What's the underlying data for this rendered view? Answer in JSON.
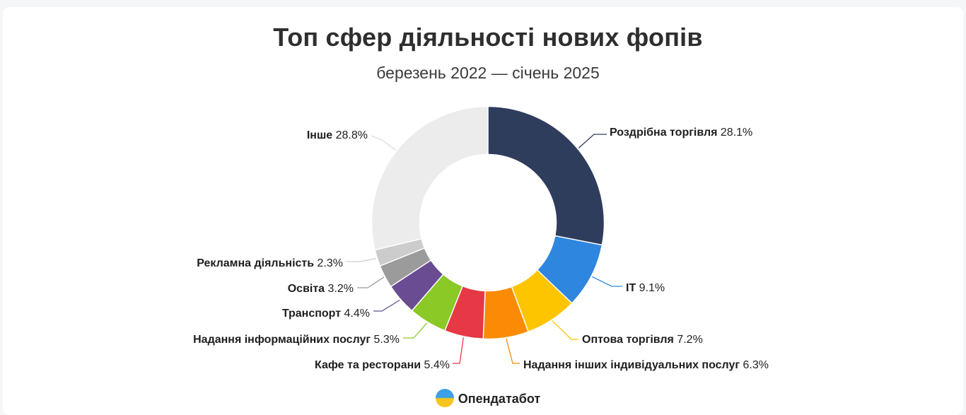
{
  "chart_data": {
    "type": "pie",
    "title": "Топ сфер діяльності нових фопів",
    "subtitle": "березень 2022 — січень 2025",
    "unit": "%",
    "slices": [
      {
        "name": "Роздрібна торгівля",
        "value": 28.1,
        "label": "28.1%",
        "color": "#2f3d5c"
      },
      {
        "name": "IT",
        "value": 9.1,
        "label": "9.1%",
        "color": "#2f86de"
      },
      {
        "name": "Оптова торгівля",
        "value": 7.2,
        "label": "7.2%",
        "color": "#fdc500"
      },
      {
        "name": "Надання інших індивідуальних послуг",
        "value": 6.3,
        "label": "6.3%",
        "color": "#fb8b05"
      },
      {
        "name": "Кафе та ресторани",
        "value": 5.4,
        "label": "5.4%",
        "color": "#e73845"
      },
      {
        "name": "Надання інформаційних послуг",
        "value": 5.3,
        "label": "5.3%",
        "color": "#8ac926"
      },
      {
        "name": "Транспорт",
        "value": 4.4,
        "label": "4.4%",
        "color": "#6a4c93"
      },
      {
        "name": "Освіта",
        "value": 3.2,
        "label": "3.2%",
        "color": "#9b9b9b"
      },
      {
        "name": "Рекламна діяльність",
        "value": 2.3,
        "label": "2.3%",
        "color": "#cccccc"
      },
      {
        "name": "Інше",
        "value": 28.8,
        "label": "28.8%",
        "color": "#ececec"
      }
    ]
  },
  "footer": {
    "brand": "Опендатабот",
    "logo_icon": "opendatabot-logo-icon"
  }
}
